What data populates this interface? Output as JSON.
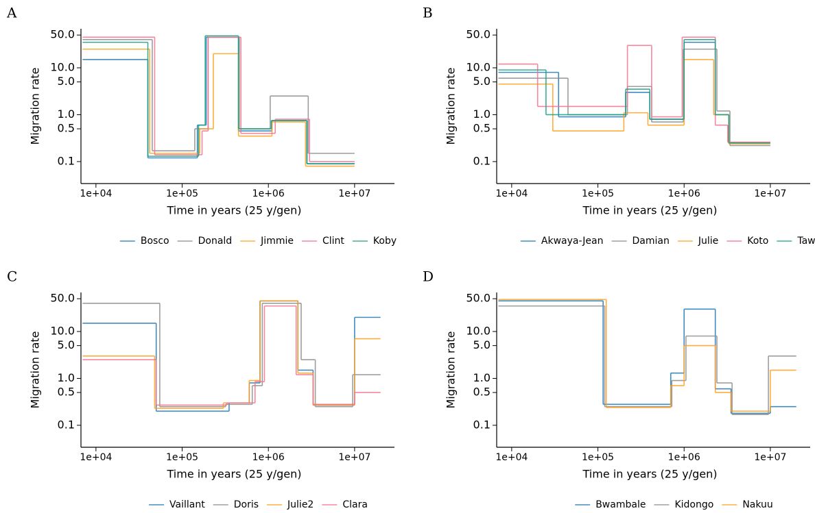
{
  "chart_data": [
    {
      "type": "step",
      "label": "A",
      "xlabel": "Time in years (25 y/gen)",
      "ylabel": "Migration rate",
      "xscale": "log",
      "yscale": "log",
      "xlim": [
        6700,
        29000000
      ],
      "ylim": [
        0.034,
        68
      ],
      "xticks": [
        {
          "value": 10000,
          "label": "1e+04"
        },
        {
          "value": 100000,
          "label": "1e+05"
        },
        {
          "value": 1000000,
          "label": "1e+06"
        },
        {
          "value": 10000000,
          "label": "1e+07"
        }
      ],
      "yticks": [
        0.1,
        0.5,
        {
          "value": 1,
          "label": "1.0"
        },
        {
          "value": 5,
          "label": "5.0"
        },
        {
          "value": 10,
          "label": "10.0"
        },
        {
          "value": 50,
          "label": "50.0"
        }
      ],
      "legend": "lower center",
      "series": [
        {
          "name": "Bosco",
          "color": "#1f77b4",
          "bins": [
            7000,
            40000,
            150000,
            190000,
            450000,
            1100000,
            2800000,
            10000000
          ],
          "values": [
            15,
            0.12,
            0.6,
            45,
            0.45,
            0.75,
            0.09
          ]
        },
        {
          "name": "Donald",
          "color": "#8c8c8c",
          "bins": [
            7000,
            45000,
            140000,
            200000,
            460000,
            1050000,
            2900000,
            10000000
          ],
          "values": [
            40,
            0.17,
            0.5,
            45,
            0.5,
            2.5,
            0.15
          ]
        },
        {
          "name": "Jimmie",
          "color": "#ff9f1c",
          "bins": [
            7000,
            42000,
            160000,
            230000,
            450000,
            1100000,
            2700000,
            10000000
          ],
          "values": [
            25,
            0.15,
            0.5,
            20,
            0.35,
            0.7,
            0.08
          ]
        },
        {
          "name": "Clint",
          "color": "#f4728c",
          "bins": [
            7000,
            48000,
            170000,
            200000,
            480000,
            1200000,
            3000000,
            10000000
          ],
          "values": [
            45,
            0.14,
            0.45,
            45,
            0.4,
            0.8,
            0.1
          ]
        },
        {
          "name": "Koby",
          "color": "#16a085",
          "bins": [
            7000,
            40000,
            155000,
            185000,
            450000,
            1080000,
            2800000,
            10000000
          ],
          "values": [
            35,
            0.13,
            0.6,
            48,
            0.5,
            0.75,
            0.09
          ]
        }
      ]
    },
    {
      "type": "step",
      "label": "B",
      "xlabel": "Time in years (25 y/gen)",
      "ylabel": "Migration rate",
      "xscale": "log",
      "yscale": "log",
      "xlim": [
        6700,
        29000000
      ],
      "ylim": [
        0.034,
        68
      ],
      "xticks": [
        {
          "value": 10000,
          "label": "1e+04"
        },
        {
          "value": 100000,
          "label": "1e+05"
        },
        {
          "value": 1000000,
          "label": "1e+06"
        },
        {
          "value": 10000000,
          "label": "1e+07"
        }
      ],
      "yticks": [
        0.1,
        0.5,
        {
          "value": 1,
          "label": "1.0"
        },
        {
          "value": 5,
          "label": "5.0"
        },
        {
          "value": 10,
          "label": "10.0"
        },
        {
          "value": 50,
          "label": "50.0"
        }
      ],
      "legend": "lower center",
      "series": [
        {
          "name": "Akwaya-Jean",
          "color": "#1f77b4",
          "bins": [
            7000,
            35000,
            210000,
            400000,
            1000000,
            2300000,
            3300000,
            10000000
          ],
          "values": [
            8,
            0.9,
            3,
            0.8,
            35,
            1,
            0.25
          ]
        },
        {
          "name": "Damian",
          "color": "#8c8c8c",
          "bins": [
            7000,
            45000,
            220000,
            420000,
            980000,
            2400000,
            3400000,
            10000000
          ],
          "values": [
            6,
            1,
            4,
            0.7,
            25,
            1.2,
            0.22
          ]
        },
        {
          "name": "Julie",
          "color": "#ff9f1c",
          "bins": [
            7000,
            30000,
            200000,
            380000,
            1000000,
            2200000,
            3300000,
            10000000
          ],
          "values": [
            4.5,
            0.45,
            1.1,
            0.6,
            15,
            1,
            0.24
          ]
        },
        {
          "name": "Koto",
          "color": "#f4728c",
          "bins": [
            7000,
            20000,
            220000,
            420000,
            950000,
            2300000,
            3200000,
            10000000
          ],
          "values": [
            12,
            1.5,
            30,
            0.9,
            45,
            0.6,
            0.26
          ]
        },
        {
          "name": "Taweh",
          "color": "#16a085",
          "bins": [
            7000,
            25000,
            210000,
            400000,
            1000000,
            2300000,
            3300000,
            10000000
          ],
          "values": [
            9,
            1,
            3.5,
            0.8,
            40,
            1,
            0.25
          ]
        }
      ]
    },
    {
      "type": "step",
      "label": "C",
      "xlabel": "Time in years (25 y/gen)",
      "ylabel": "Migration rate",
      "xscale": "log",
      "yscale": "log",
      "xlim": [
        6700,
        29000000
      ],
      "ylim": [
        0.034,
        68
      ],
      "xticks": [
        {
          "value": 10000,
          "label": "1e+04"
        },
        {
          "value": 100000,
          "label": "1e+05"
        },
        {
          "value": 1000000,
          "label": "1e+06"
        },
        {
          "value": 10000000,
          "label": "1e+07"
        }
      ],
      "yticks": [
        0.1,
        0.5,
        {
          "value": 1,
          "label": "1.0"
        },
        {
          "value": 5,
          "label": "5.0"
        },
        {
          "value": 10,
          "label": "10.0"
        },
        {
          "value": 50,
          "label": "50.0"
        }
      ],
      "legend": "lower center",
      "series": [
        {
          "name": "Vaillant",
          "color": "#1f77b4",
          "bins": [
            7000,
            50000,
            350000,
            600000,
            800000,
            2200000,
            3300000,
            10000000,
            20000000
          ],
          "values": [
            15,
            0.2,
            0.3,
            0.8,
            45,
            1.5,
            0.27,
            20
          ]
        },
        {
          "name": "Doris",
          "color": "#8c8c8c",
          "bins": [
            7000,
            55000,
            320000,
            650000,
            850000,
            2400000,
            3500000,
            9500000,
            20000000
          ],
          "values": [
            40,
            0.25,
            0.28,
            0.7,
            40,
            2.5,
            0.25,
            1.2
          ]
        },
        {
          "name": "Julie2",
          "color": "#ff9f1c",
          "bins": [
            7000,
            48000,
            300000,
            600000,
            800000,
            2200000,
            3300000,
            10000000,
            20000000
          ],
          "values": [
            3,
            0.23,
            0.3,
            0.9,
            45,
            1.3,
            0.27,
            7
          ]
        },
        {
          "name": "Clara",
          "color": "#f4728c",
          "bins": [
            7000,
            50000,
            330000,
            700000,
            900000,
            2100000,
            3300000,
            10000000,
            20000000
          ],
          "values": [
            2.5,
            0.27,
            0.3,
            0.85,
            35,
            1.2,
            0.28,
            0.5
          ]
        }
      ]
    },
    {
      "type": "step",
      "label": "D",
      "xlabel": "Time in years (25 y/gen)",
      "ylabel": "Migration rate",
      "xscale": "log",
      "yscale": "log",
      "xlim": [
        6700,
        29000000
      ],
      "ylim": [
        0.034,
        68
      ],
      "xticks": [
        {
          "value": 10000,
          "label": "1e+04"
        },
        {
          "value": 100000,
          "label": "1e+05"
        },
        {
          "value": 1000000,
          "label": "1e+06"
        },
        {
          "value": 10000000,
          "label": "1e+07"
        }
      ],
      "yticks": [
        0.1,
        0.5,
        {
          "value": 1,
          "label": "1.0"
        },
        {
          "value": 5,
          "label": "5.0"
        },
        {
          "value": 10,
          "label": "10.0"
        },
        {
          "value": 50,
          "label": "50.0"
        }
      ],
      "legend": "lower center",
      "series": [
        {
          "name": "Bwambale",
          "color": "#1f77b4",
          "bins": [
            7000,
            115000,
            700000,
            1000000,
            2300000,
            3500000,
            10000000,
            20000000
          ],
          "values": [
            45,
            0.28,
            1.3,
            30,
            0.6,
            0.18,
            0.25
          ]
        },
        {
          "name": "Kidongo",
          "color": "#8c8c8c",
          "bins": [
            7000,
            120000,
            720000,
            1050000,
            2400000,
            3600000,
            9500000,
            20000000
          ],
          "values": [
            35,
            0.25,
            0.9,
            8,
            0.8,
            0.17,
            3
          ]
        },
        {
          "name": "Nakuu",
          "color": "#ff9f1c",
          "bins": [
            7000,
            125000,
            700000,
            1000000,
            2300000,
            3500000,
            10000000,
            20000000
          ],
          "values": [
            48,
            0.24,
            0.7,
            5,
            0.5,
            0.2,
            1.5
          ]
        }
      ]
    }
  ]
}
